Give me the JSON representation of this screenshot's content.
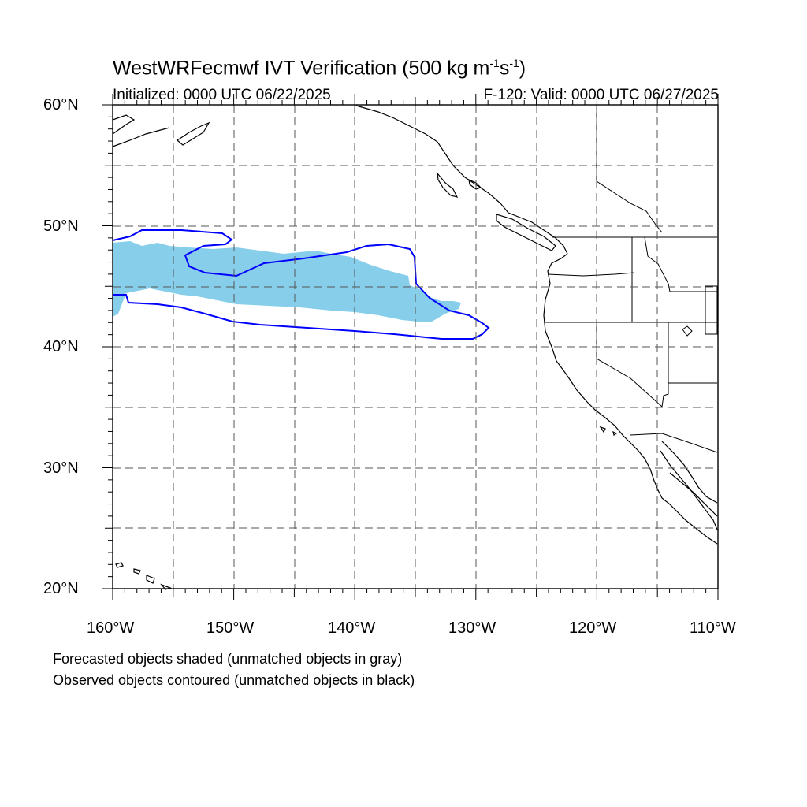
{
  "header": {
    "title_main": "WestWRFecmwf IVT Verification (500 kg m",
    "title_sup1": "-1",
    "title_mid": "s",
    "title_sup2": "-1",
    "title_end": ")",
    "initialized": "Initialized: 0000 UTC 06/22/2025",
    "valid": "F-120: Valid: 0000 UTC 06/27/2025"
  },
  "axes": {
    "lat_labels": [
      "60°N",
      "50°N",
      "40°N",
      "30°N",
      "20°N"
    ],
    "lon_labels": [
      "160°W",
      "150°W",
      "140°W",
      "130°W",
      "120°W",
      "110°W"
    ]
  },
  "legend_notes": [
    "Forecasted objects shaded (unmatched objects in gray)",
    "Observed objects contoured (unmatched objects in black)"
  ],
  "colors": {
    "forecast_fill": "#87ceeb",
    "observed_contour": "#0000ff",
    "coastline": "#000000"
  }
}
